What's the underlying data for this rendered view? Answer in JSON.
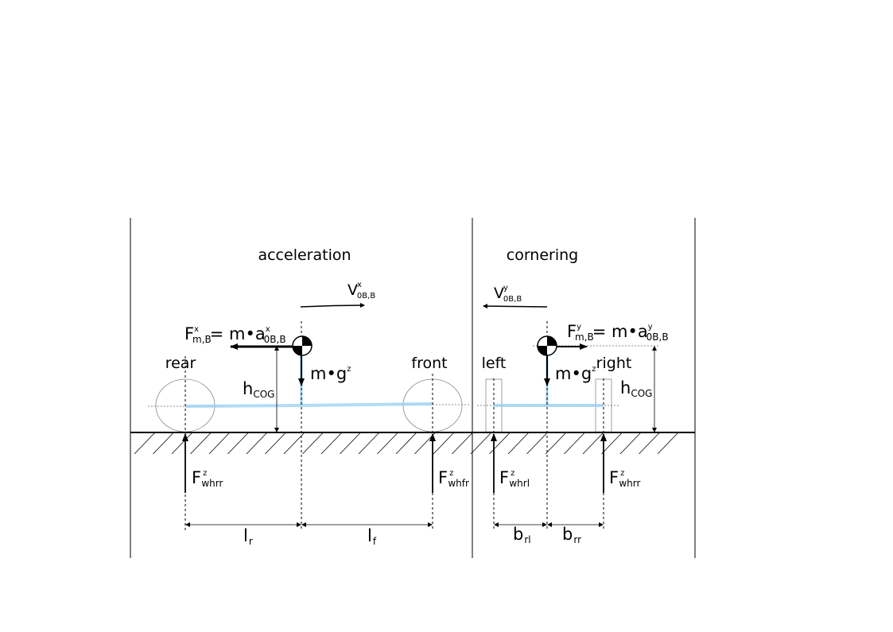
{
  "panels": {
    "acceleration": {
      "title": "acceleration",
      "rear_label": "rear",
      "front_label": "front",
      "velocity": {
        "base": "V",
        "sup": "x",
        "sub": "0B,B"
      },
      "inertia": {
        "F": "F",
        "F_sup": "x",
        "F_sub": "m,B",
        "eq": "= m•a",
        "a_sup": "x",
        "a_sub": "0B,B"
      },
      "gravity": {
        "base": "m•g",
        "sup": "z"
      },
      "height": {
        "base": "h",
        "sub": "COG"
      },
      "rear_force": {
        "base": "F",
        "sup": "z",
        "sub": "whrr"
      },
      "front_force": {
        "base": "F",
        "sup": "z",
        "sub": "whfr"
      },
      "dim_rear": {
        "base": "l",
        "sub": "r"
      },
      "dim_front": {
        "base": "l",
        "sub": "f"
      }
    },
    "cornering": {
      "title": "cornering",
      "left_label": "left",
      "right_label": "right",
      "velocity": {
        "base": "V",
        "sup": "y",
        "sub": "0B,B"
      },
      "inertia": {
        "F": "F",
        "F_sup": "y",
        "F_sub": "m,B",
        "eq": "= m•a",
        "a_sup": "y",
        "a_sub": "0B,B"
      },
      "gravity": {
        "base": "m•g",
        "sup": "z"
      },
      "height": {
        "base": "h",
        "sub": "COG"
      },
      "left_force": {
        "base": "F",
        "sup": "z",
        "sub": "whrl"
      },
      "right_force": {
        "base": "F",
        "sup": "z",
        "sub": "whrr"
      },
      "dim_left": {
        "base": "b",
        "sub": "rl"
      },
      "dim_right": {
        "base": "b",
        "sub": "rr"
      }
    }
  },
  "colors": {
    "stroke": "#000000",
    "beam": "#9fd3f2",
    "wheel": "#888888"
  },
  "icons": {
    "cog_marker": "center-of-gravity-icon"
  }
}
